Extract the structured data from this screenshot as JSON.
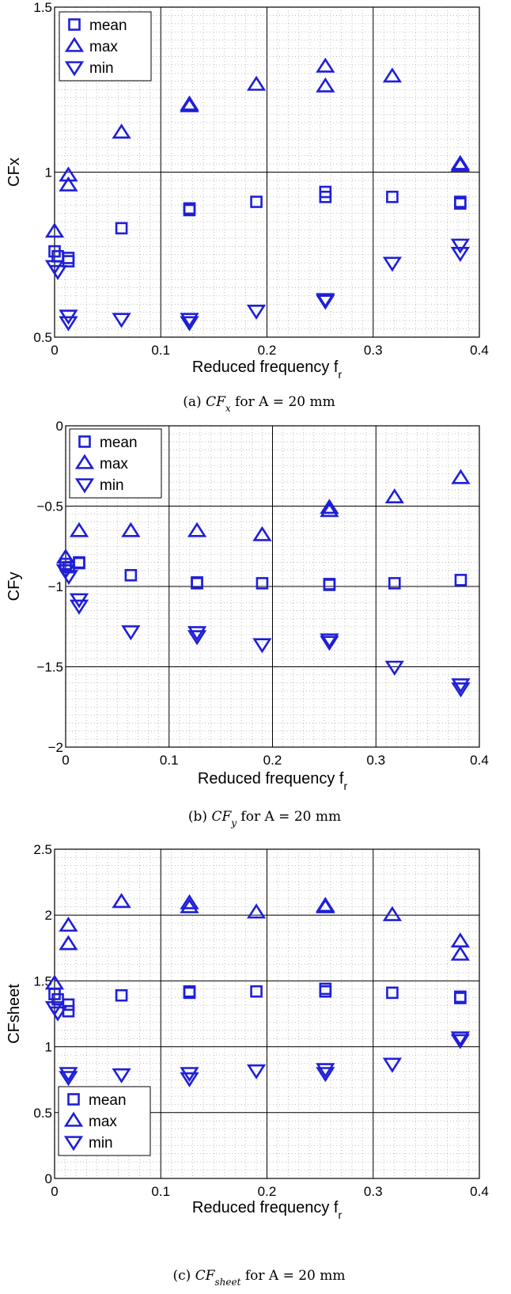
{
  "chart_data": [
    {
      "type": "scatter",
      "xlabel": "Reduced frequency f",
      "xlabel_sub": "r",
      "ylabel": "CFx",
      "xlim": [
        0,
        0.4
      ],
      "ylim": [
        0.5,
        1.5
      ],
      "xticks": [
        0,
        0.1,
        0.2,
        0.3,
        0.4
      ],
      "xtick_labels": [
        "0",
        "0.1",
        "0.2",
        "0.3",
        "0.4"
      ],
      "yticks": [
        0.5,
        1,
        1.5
      ],
      "ytick_labels": [
        "0.5",
        "1",
        "1.5"
      ],
      "grid": true,
      "legend_position": "top-left",
      "caption": {
        "prefix": "(a) ",
        "symbol": "CF",
        "sub": "x",
        "suffix": " for A = 20 mm"
      },
      "series": [
        {
          "name": "mean",
          "marker": "square",
          "color": "#1f1fd8",
          "points": [
            [
              0.0,
              0.76
            ],
            [
              0.003,
              0.745
            ],
            [
              0.013,
              0.74
            ],
            [
              0.013,
              0.73
            ],
            [
              0.063,
              0.83
            ],
            [
              0.127,
              0.89
            ],
            [
              0.127,
              0.885
            ],
            [
              0.19,
              0.91
            ],
            [
              0.255,
              0.94
            ],
            [
              0.255,
              0.925
            ],
            [
              0.318,
              0.925
            ],
            [
              0.382,
              0.91
            ],
            [
              0.382,
              0.905
            ]
          ]
        },
        {
          "name": "max",
          "marker": "triangle-up",
          "color": "#1f1fd8",
          "points": [
            [
              0.0,
              0.82
            ],
            [
              0.013,
              0.99
            ],
            [
              0.013,
              0.96
            ],
            [
              0.063,
              1.12
            ],
            [
              0.127,
              1.205
            ],
            [
              0.127,
              1.2
            ],
            [
              0.19,
              1.265
            ],
            [
              0.255,
              1.32
            ],
            [
              0.255,
              1.26
            ],
            [
              0.318,
              1.29
            ],
            [
              0.382,
              1.025
            ],
            [
              0.382,
              1.02
            ]
          ]
        },
        {
          "name": "min",
          "marker": "triangle-down",
          "color": "#1f1fd8",
          "points": [
            [
              0.0,
              0.715
            ],
            [
              0.003,
              0.7
            ],
            [
              0.013,
              0.565
            ],
            [
              0.013,
              0.545
            ],
            [
              0.063,
              0.555
            ],
            [
              0.127,
              0.555
            ],
            [
              0.127,
              0.545
            ],
            [
              0.19,
              0.58
            ],
            [
              0.255,
              0.615
            ],
            [
              0.255,
              0.61
            ],
            [
              0.318,
              0.725
            ],
            [
              0.382,
              0.78
            ],
            [
              0.382,
              0.755
            ]
          ]
        }
      ]
    },
    {
      "type": "scatter",
      "xlabel": "Reduced frequency f",
      "xlabel_sub": "r",
      "ylabel": "CFy",
      "xlim": [
        0,
        0.4
      ],
      "ylim": [
        -2,
        0
      ],
      "xticks": [
        0,
        0.1,
        0.2,
        0.3,
        0.4
      ],
      "xtick_labels": [
        "0",
        "0.1",
        "0.2",
        "0.3",
        "0.4"
      ],
      "yticks": [
        -2,
        -1.5,
        -1,
        -0.5,
        0
      ],
      "ytick_labels": [
        "−2",
        "−1.5",
        "−1",
        "−0.5",
        "0"
      ],
      "grid": true,
      "legend_position": "top-left",
      "caption": {
        "prefix": "(b) ",
        "symbol": "CF",
        "sub": "y",
        "suffix": " for A = 20 mm"
      },
      "series": [
        {
          "name": "mean",
          "marker": "square",
          "color": "#1f1fd8",
          "points": [
            [
              0.0,
              -0.86
            ],
            [
              0.003,
              -0.88
            ],
            [
              0.013,
              -0.855
            ],
            [
              0.013,
              -0.85
            ],
            [
              0.063,
              -0.93
            ],
            [
              0.127,
              -0.975
            ],
            [
              0.127,
              -0.98
            ],
            [
              0.19,
              -0.98
            ],
            [
              0.255,
              -0.985
            ],
            [
              0.255,
              -0.99
            ],
            [
              0.318,
              -0.98
            ],
            [
              0.382,
              -0.96
            ]
          ]
        },
        {
          "name": "max",
          "marker": "triangle-up",
          "color": "#1f1fd8",
          "points": [
            [
              0.0,
              -0.82
            ],
            [
              0.013,
              -0.655
            ],
            [
              0.063,
              -0.655
            ],
            [
              0.127,
              -0.655
            ],
            [
              0.19,
              -0.68
            ],
            [
              0.255,
              -0.51
            ],
            [
              0.255,
              -0.53
            ],
            [
              0.318,
              -0.445
            ],
            [
              0.382,
              -0.325
            ]
          ]
        },
        {
          "name": "min",
          "marker": "triangle-down",
          "color": "#1f1fd8",
          "points": [
            [
              0.0,
              -0.9
            ],
            [
              0.003,
              -0.935
            ],
            [
              0.013,
              -1.08
            ],
            [
              0.013,
              -1.12
            ],
            [
              0.063,
              -1.28
            ],
            [
              0.127,
              -1.285
            ],
            [
              0.127,
              -1.31
            ],
            [
              0.19,
              -1.36
            ],
            [
              0.255,
              -1.33
            ],
            [
              0.255,
              -1.345
            ],
            [
              0.318,
              -1.5
            ],
            [
              0.382,
              -1.61
            ],
            [
              0.382,
              -1.635
            ]
          ]
        }
      ]
    },
    {
      "type": "scatter",
      "xlabel": "Reduced frequency f",
      "xlabel_sub": "r",
      "ylabel": "CFsheet",
      "xlim": [
        0,
        0.4
      ],
      "ylim": [
        0,
        2.5
      ],
      "xticks": [
        0,
        0.1,
        0.2,
        0.3,
        0.4
      ],
      "xtick_labels": [
        "0",
        "0.1",
        "0.2",
        "0.3",
        "0.4"
      ],
      "yticks": [
        0,
        0.5,
        1,
        1.5,
        2,
        2.5
      ],
      "ytick_labels": [
        "0",
        "0.5",
        "1",
        "1.5",
        "2",
        "2.5"
      ],
      "grid": true,
      "legend_position": "bottom-left",
      "caption": {
        "prefix": "(c) ",
        "symbol": "CF",
        "sub": "sheet",
        "suffix": " for A = 20 mm"
      },
      "series": [
        {
          "name": "mean",
          "marker": "square",
          "color": "#1f1fd8",
          "points": [
            [
              0.0,
              1.4
            ],
            [
              0.003,
              1.36
            ],
            [
              0.013,
              1.32
            ],
            [
              0.013,
              1.27
            ],
            [
              0.063,
              1.39
            ],
            [
              0.127,
              1.42
            ],
            [
              0.127,
              1.41
            ],
            [
              0.19,
              1.42
            ],
            [
              0.255,
              1.44
            ],
            [
              0.255,
              1.42
            ],
            [
              0.318,
              1.41
            ],
            [
              0.382,
              1.38
            ],
            [
              0.382,
              1.37
            ]
          ]
        },
        {
          "name": "max",
          "marker": "triangle-up",
          "color": "#1f1fd8",
          "points": [
            [
              0.0,
              1.48
            ],
            [
              0.013,
              1.92
            ],
            [
              0.013,
              1.78
            ],
            [
              0.063,
              2.1
            ],
            [
              0.127,
              2.09
            ],
            [
              0.127,
              2.06
            ],
            [
              0.19,
              2.02
            ],
            [
              0.255,
              2.07
            ],
            [
              0.255,
              2.06
            ],
            [
              0.318,
              2.0
            ],
            [
              0.382,
              1.8
            ],
            [
              0.382,
              1.7
            ]
          ]
        },
        {
          "name": "min",
          "marker": "triangle-down",
          "color": "#1f1fd8",
          "points": [
            [
              0.0,
              1.3
            ],
            [
              0.003,
              1.26
            ],
            [
              0.013,
              0.8
            ],
            [
              0.013,
              0.77
            ],
            [
              0.063,
              0.79
            ],
            [
              0.127,
              0.8
            ],
            [
              0.127,
              0.76
            ],
            [
              0.19,
              0.82
            ],
            [
              0.255,
              0.83
            ],
            [
              0.255,
              0.8
            ],
            [
              0.318,
              0.87
            ],
            [
              0.382,
              1.07
            ],
            [
              0.382,
              1.05
            ]
          ]
        }
      ]
    }
  ]
}
